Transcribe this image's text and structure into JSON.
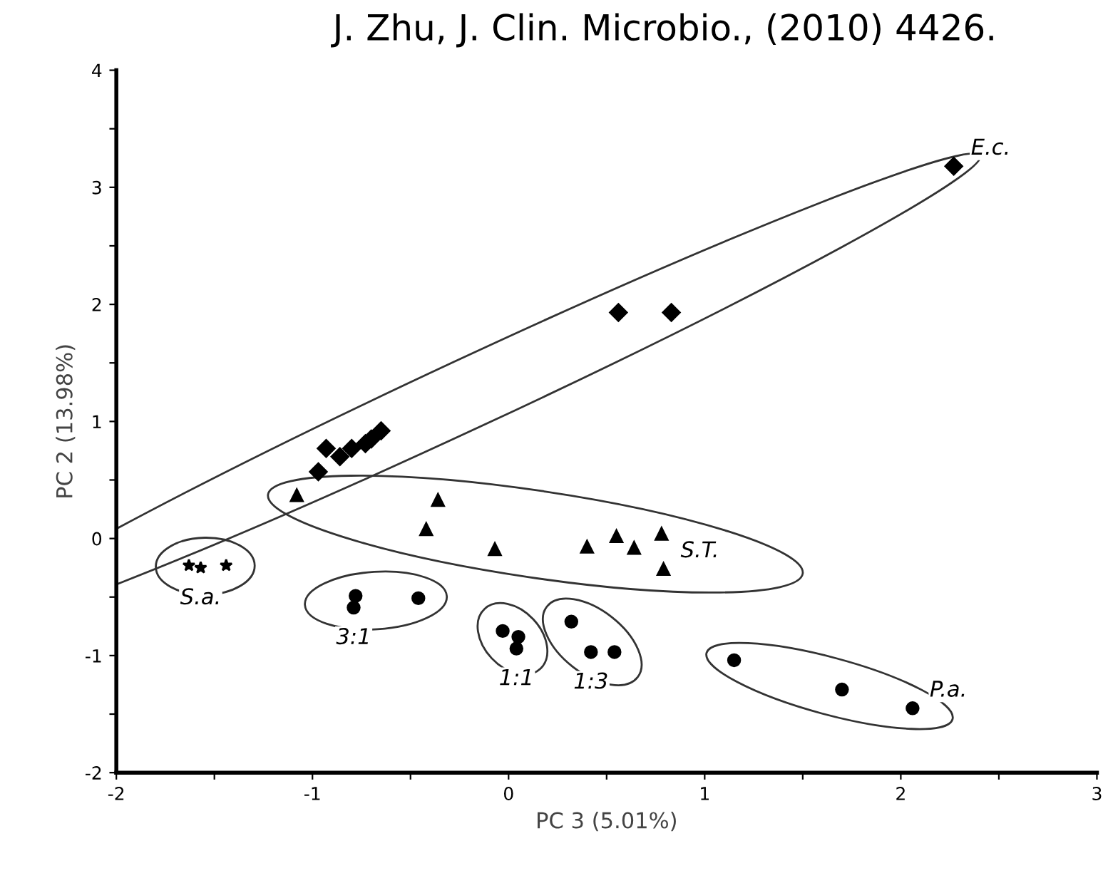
{
  "chart_data": {
    "type": "scatter",
    "title": "J. Zhu, J. Clin. Microbio., (2010) 4426.",
    "xlabel": "PC 3 (5.01%)",
    "ylabel": "PC 2 (13.98%)",
    "series": [
      {
        "name": "E.c.",
        "color": "#000000",
        "marker": "diamond",
        "x": [
          2.27,
          0.56,
          0.83,
          -0.65,
          -0.7,
          -0.73,
          -0.8,
          -0.86,
          -0.93,
          -0.97
        ],
        "values": [
          3.18,
          1.93,
          1.93,
          0.92,
          0.85,
          0.81,
          0.77,
          0.7,
          0.77,
          0.57
        ]
      },
      {
        "name": "S.T.",
        "color": "#000000",
        "marker": "triangle",
        "x": [
          -1.08,
          -0.36,
          -0.42,
          -0.07,
          0.4,
          0.55,
          0.64,
          0.78,
          0.79
        ],
        "values": [
          0.37,
          0.33,
          0.08,
          -0.09,
          -0.07,
          0.02,
          -0.08,
          0.04,
          -0.26
        ]
      },
      {
        "name": "S.a.",
        "color": "#000000",
        "marker": "star",
        "x": [
          -1.63,
          -1.57,
          -1.44
        ],
        "values": [
          -0.23,
          -0.25,
          -0.23
        ]
      },
      {
        "name": "3:1",
        "color": "#000000",
        "marker": "circle",
        "x": [
          -0.78,
          -0.79,
          -0.46
        ],
        "values": [
          -0.49,
          -0.59,
          -0.51
        ]
      },
      {
        "name": "1:1",
        "color": "#000000",
        "marker": "circle",
        "x": [
          -0.03,
          0.05,
          0.04
        ],
        "values": [
          -0.79,
          -0.84,
          -0.94
        ]
      },
      {
        "name": "1:3",
        "color": "#000000",
        "marker": "circle",
        "x": [
          0.32,
          0.42,
          0.54
        ],
        "values": [
          -0.71,
          -0.97,
          -0.97
        ]
      },
      {
        "name": "P.a.",
        "color": "#000000",
        "marker": "circle",
        "x": [
          1.15,
          1.7,
          2.06
        ],
        "values": [
          -1.04,
          -1.29,
          -1.45
        ]
      }
    ],
    "xlim": [
      -2,
      3
    ],
    "ylim": [
      -2,
      4
    ],
    "xticks": [
      -2,
      {
        "value": -1.5,
        "label": null
      },
      -1,
      {
        "value": -0.5,
        "label": null
      },
      0,
      {
        "value": 0.5,
        "label": null
      },
      1,
      {
        "value": 1.5,
        "label": null
      },
      2,
      {
        "value": 2.5,
        "label": null
      },
      3
    ],
    "yticks": [
      -2,
      {
        "value": -1.5,
        "label": null
      },
      -1,
      {
        "value": -0.5,
        "label": null
      },
      0,
      {
        "value": 0.5,
        "label": null
      },
      1,
      {
        "value": 1.5,
        "label": null
      },
      2,
      {
        "value": 2.5,
        "label": null
      },
      3,
      {
        "value": 3.5,
        "label": null
      },
      4
    ],
    "grid": false
  }
}
